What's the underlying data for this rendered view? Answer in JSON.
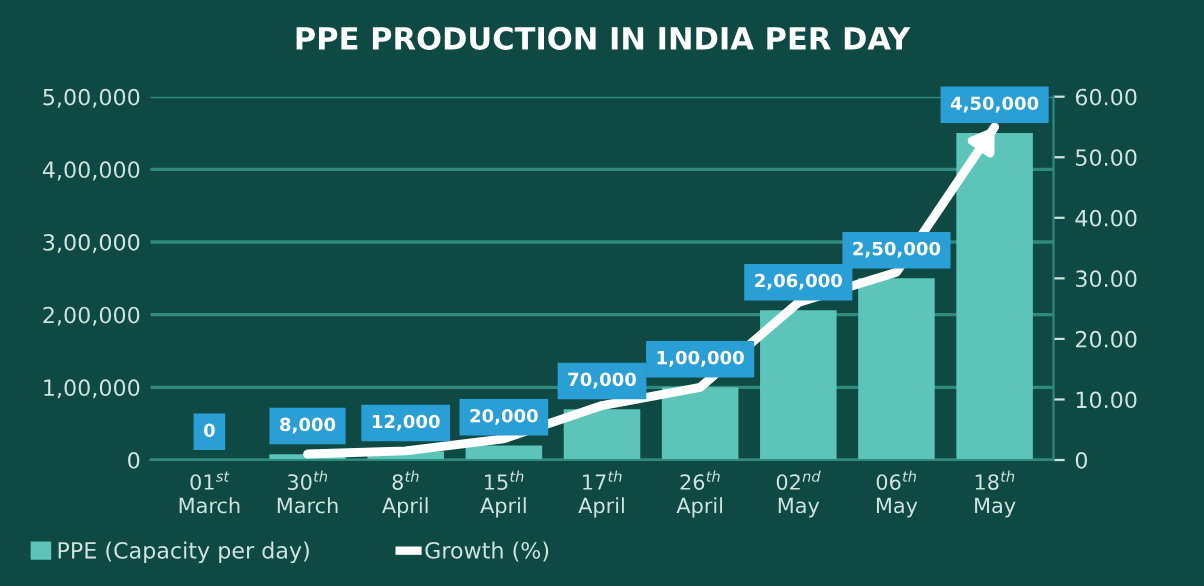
{
  "chart_data": {
    "type": "bar",
    "title": "PPE PRODUCTION IN INDIA PER DAY",
    "categories": [
      "01$^{st}$\nMarch",
      "30$^{th}$\nMarch",
      "8$^{th}$\nApril",
      "15$^{th}$\nApril",
      "17$^{th}$\nApril",
      "26$^{th}$\nApril",
      "02$^{nd}$\nMay",
      "06$^{th}$\nMay",
      "18$^{th}$\nMay"
    ],
    "series": [
      {
        "name": "PPE (Capacity per day)",
        "color": "#5cc4b8",
        "values": [
          0,
          8000,
          12000,
          20000,
          70000,
          100000,
          206000,
          250000,
          450000
        ],
        "value_labels": [
          "0",
          "8,000",
          "12,000",
          "20,000",
          "70,000",
          "1,00,000",
          "2,06,000",
          "2,50,000",
          "4,50,000"
        ]
      },
      {
        "name": "Growth (%)",
        "type": "line",
        "axis": "y2",
        "color": "#ffffff",
        "values": [
          null,
          1,
          1.5,
          3.5,
          9,
          12,
          26,
          31,
          55
        ]
      }
    ],
    "ylim": [
      0,
      500000
    ],
    "yticks": [
      0,
      {
        "value": 100000,
        "label": "1,00,000"
      },
      {
        "value": 200000,
        "label": "2,00,000"
      },
      {
        "value": 300000,
        "label": "3,00,000"
      },
      {
        "value": 400000,
        "label": "4,00,000"
      },
      {
        "value": 500000,
        "label": "5,00,000"
      }
    ],
    "y2lim": [
      0,
      60
    ],
    "y2ticks": [
      0,
      {
        "value": 10,
        "label": "10.00"
      },
      {
        "value": 20,
        "label": "20.00"
      },
      {
        "value": 30,
        "label": "30.00"
      },
      {
        "value": 40,
        "label": "40.00"
      },
      {
        "value": 50,
        "label": "50.00"
      },
      {
        "value": 60,
        "label": "60.00"
      }
    ],
    "grid": "y",
    "legend": "bottom left",
    "marker": "none",
    "line_style": "solid"
  }
}
